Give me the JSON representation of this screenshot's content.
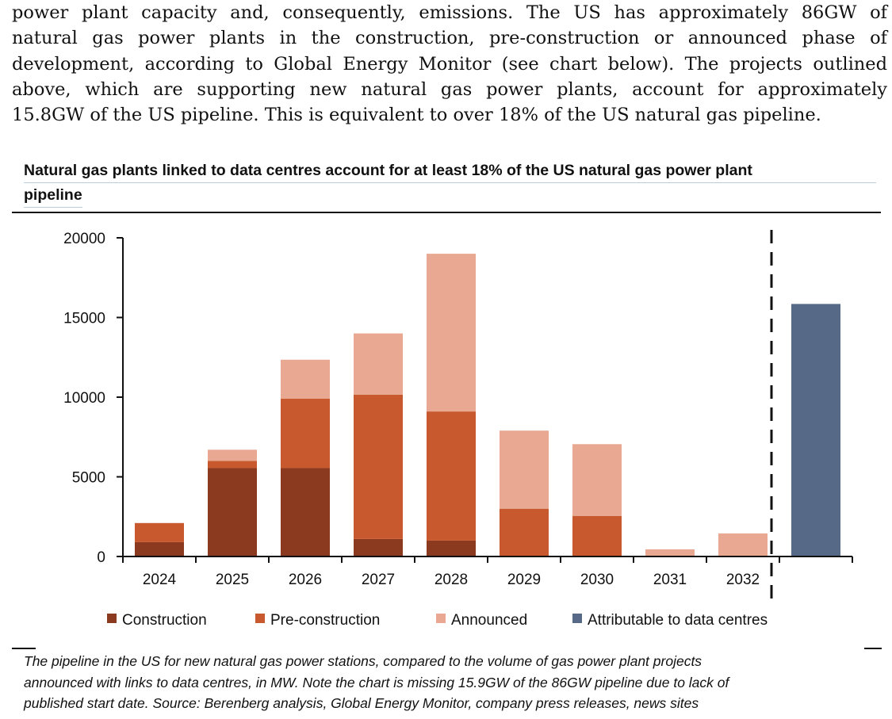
{
  "body_text": [
    "power plant capacity and, consequently, emissions. The US has approximately 86GW of",
    "natural gas power plants in the construction, pre-construction or announced phase of",
    "development, according to Global Energy Monitor (see chart below). The projects outlined",
    "above, which are supporting new natural gas power plants, account for approximately",
    "15.8GW of the US pipeline. This is equivalent to over 18% of the US natural gas pipeline."
  ],
  "chart_data": {
    "type": "bar",
    "stacked": true,
    "title_line1": "Natural gas plants linked to data centres account for at least 18% of the US natural gas power plant",
    "title_line2": "pipeline",
    "categories": [
      "2024",
      "2025",
      "2026",
      "2027",
      "2028",
      "2029",
      "2030",
      "2031",
      "2032",
      ""
    ],
    "series": [
      {
        "name": "Construction",
        "color": "#8B3A1F",
        "values": [
          900,
          5550,
          5550,
          1100,
          1000,
          0,
          0,
          0,
          0,
          0
        ]
      },
      {
        "name": "Pre-construction",
        "color": "#C8582D",
        "values": [
          1200,
          450,
          4350,
          9050,
          8100,
          3000,
          2550,
          0,
          0,
          0
        ]
      },
      {
        "name": "Announced",
        "color": "#E8A891",
        "values": [
          0,
          700,
          2450,
          3850,
          9900,
          4900,
          4500,
          450,
          1450,
          0
        ]
      },
      {
        "name": "Attributable to data centres",
        "color": "#566A87",
        "values": [
          0,
          0,
          0,
          0,
          0,
          0,
          0,
          0,
          0,
          15850
        ]
      }
    ],
    "yticks": [
      "0",
      "5000",
      "10000",
      "15000",
      "20000"
    ],
    "ylim": [
      0,
      20000
    ],
    "xlabel": "",
    "ylabel": "",
    "legend_position": "bottom",
    "grid": false
  },
  "caption": [
    "The pipeline in the US for new natural gas power stations, compared to the volume of gas power plant projects",
    "announced with links to data centres, in MW. Note the chart is missing 15.9GW of the 86GW pipeline due to lack of",
    "published start date. Source: Berenberg analysis, Global Energy Monitor, company press releases, news sites"
  ]
}
